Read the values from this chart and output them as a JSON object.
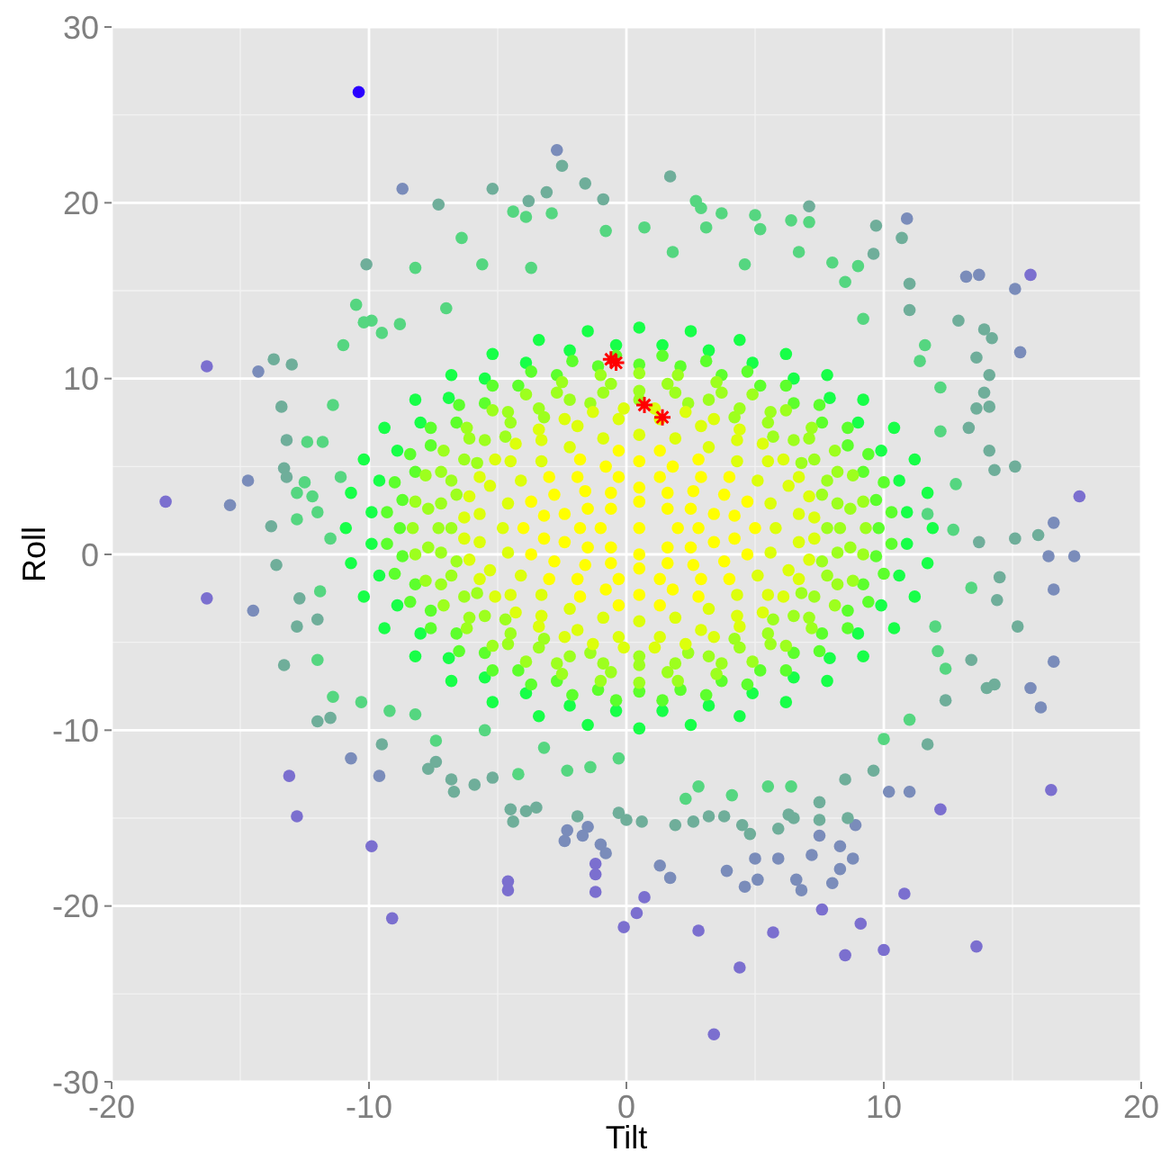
{
  "chart_data": {
    "type": "scatter",
    "xlabel": "Tilt",
    "ylabel": "Roll",
    "xlim": [
      -20,
      20
    ],
    "ylim": [
      -30,
      30
    ],
    "xticks": [
      -20,
      -10,
      0,
      10,
      20
    ],
    "yticks": [
      -30,
      -20,
      -10,
      0,
      10,
      20,
      30
    ],
    "grid": true,
    "marker": "circle",
    "series": [
      {
        "color": "#7b6fcf",
        "x": [
          -16.3,
          -17.9,
          -16.3,
          -13.1,
          -12.8,
          -9.9,
          -9.1,
          -4.6,
          -4.6,
          -1.2,
          -1.2,
          -1.2,
          -0.1,
          0.4,
          15.7,
          17.6,
          16.5,
          12.2,
          10.8,
          10.0,
          13.6,
          9.1,
          8.5,
          7.6,
          3.4,
          4.4,
          5.7,
          2.8,
          0.7
        ],
        "values": [
          10.7,
          3.0,
          -2.5,
          -12.6,
          -14.9,
          -16.6,
          -20.7,
          -18.6,
          -19.1,
          -17.6,
          -18.2,
          -19.2,
          -21.2,
          -20.4,
          15.9,
          3.3,
          -13.4,
          -14.5,
          -19.3,
          -22.5,
          -22.3,
          -21.0,
          -22.8,
          -20.2,
          -27.3,
          -23.5,
          -21.5,
          -21.4,
          -19.5
        ]
      },
      {
        "color": "#7a8cba",
        "x": [
          -2.7,
          -8.7,
          -14.3,
          -14.7,
          -15.4,
          10.9,
          13.2,
          13.7,
          15.1,
          15.3,
          16.6,
          16.4,
          17.4,
          -14.5,
          -10.7,
          -9.6,
          -2.3,
          -2.4,
          -1.5,
          -1.7,
          -1.0,
          -0.8,
          16.6,
          16.6,
          15.7,
          16.1,
          11.0,
          10.2,
          1.3,
          1.7,
          3.9,
          4.6,
          5.1,
          5.0,
          5.9,
          6.6,
          6.8,
          8.0,
          8.3,
          8.8,
          7.2,
          8.3,
          7.5,
          8.9
        ],
        "values": [
          23.0,
          20.8,
          10.4,
          4.2,
          2.8,
          19.1,
          15.8,
          15.9,
          15.1,
          11.5,
          1.8,
          -0.1,
          -0.1,
          -3.2,
          -11.6,
          -12.6,
          -15.7,
          -16.3,
          -15.5,
          -16.0,
          -16.5,
          -17.0,
          -2.0,
          -6.1,
          -7.6,
          -8.7,
          -13.5,
          -13.5,
          -17.7,
          -18.4,
          -18.0,
          -18.9,
          -18.5,
          -17.3,
          -17.3,
          -18.5,
          -19.1,
          -18.7,
          -17.9,
          -17.3,
          -17.1,
          -16.6,
          -16.0,
          -15.4
        ]
      },
      {
        "color": "#6fae9a",
        "x": [
          -2.5,
          -7.3,
          -5.2,
          -1.6,
          -0.9,
          -3.1,
          -3.8,
          -10.1,
          -13.7,
          -13.0,
          -13.4,
          -13.2,
          -13.3,
          -13.2,
          -13.8,
          1.7,
          7.1,
          9.7,
          10.7,
          9.6,
          11.0,
          12.9,
          13.9,
          14.2,
          13.6,
          14.1,
          13.9,
          14.1,
          13.6,
          13.3,
          15.1,
          14.1,
          14.3,
          16.0,
          15.1,
          13.7,
          11.0,
          -13.6,
          -12.7,
          -12.8,
          -12.0,
          -13.3,
          -12.0,
          -11.5,
          -9.5,
          -7.7,
          -7.4,
          -6.8,
          -6.7,
          -5.9,
          -5.2,
          -4.5,
          -4.4,
          -3.9,
          -3.5,
          -1.9,
          -0.3,
          0.0,
          14.3,
          14.0,
          13.4,
          15.2,
          14.4,
          14.5,
          12.4,
          11.7,
          9.6,
          7.5,
          8.6,
          5.9,
          4.8,
          4.5,
          1.9,
          2.6,
          3.2,
          3.8,
          0.6,
          6.3,
          6.5,
          8.5,
          7.5
        ],
        "values": [
          22.1,
          19.9,
          20.8,
          21.1,
          20.2,
          20.6,
          20.1,
          16.5,
          11.1,
          10.8,
          8.4,
          6.5,
          4.9,
          4.4,
          1.6,
          21.5,
          19.8,
          18.7,
          18.0,
          17.1,
          15.4,
          13.3,
          12.8,
          12.3,
          11.2,
          10.2,
          9.2,
          8.4,
          8.3,
          7.2,
          5.0,
          5.9,
          4.8,
          1.1,
          0.9,
          0.7,
          13.9,
          -0.6,
          -2.5,
          -4.1,
          -3.7,
          -6.3,
          -9.5,
          -9.3,
          -10.8,
          -12.2,
          -11.8,
          -12.8,
          -13.5,
          -13.1,
          -12.7,
          -14.5,
          -15.2,
          -14.6,
          -14.4,
          -14.9,
          -14.7,
          -15.1,
          -7.4,
          -7.6,
          -6.0,
          -4.1,
          -2.6,
          -1.3,
          -8.3,
          -10.8,
          -12.3,
          -15.1,
          -15.0,
          -15.6,
          -15.9,
          -15.4,
          -15.4,
          -15.2,
          -14.9,
          -14.9,
          -15.2,
          -14.8,
          -15.0,
          -12.8,
          -14.1
        ]
      },
      {
        "color": "#55d680",
        "x": [
          -4.4,
          -3.9,
          -2.9,
          -0.8,
          -6.4,
          -8.2,
          -10.5,
          -10.2,
          -9.9,
          -11.0,
          -12.4,
          -11.8,
          -11.4,
          -12.5,
          -12.8,
          -12.2,
          -12.8,
          -12.0,
          -11.5,
          -11.1,
          2.7,
          2.9,
          3.7,
          5.0,
          6.4,
          7.1,
          5.2,
          9.0,
          11.6,
          11.4,
          12.2,
          12.2,
          12.8,
          12.7,
          11.7,
          -11.9,
          -12.0,
          -11.4,
          -10.3,
          -9.2,
          -8.2,
          11.0,
          10.0,
          6.4,
          5.5,
          4.1,
          2.3,
          2.8,
          12.1,
          12.4,
          13.4,
          12.0,
          -7.4,
          -5.5,
          -3.2,
          -2.3,
          -1.4,
          -0.3,
          -4.2,
          0.7,
          3.1,
          4.6,
          6.7,
          8.0,
          8.5,
          9.2,
          1.8,
          -3.7,
          -5.6,
          -7.0,
          -8.8,
          -9.5
        ],
        "values": [
          19.5,
          19.2,
          19.4,
          18.4,
          18.0,
          16.3,
          14.2,
          13.2,
          13.3,
          11.9,
          6.4,
          6.4,
          8.5,
          4.1,
          3.5,
          3.3,
          2.0,
          2.4,
          0.9,
          4.4,
          20.1,
          19.7,
          19.4,
          19.3,
          19.0,
          18.9,
          18.5,
          16.4,
          11.9,
          11.0,
          9.5,
          7.0,
          4.0,
          1.4,
          2.3,
          -2.1,
          -6.0,
          -8.1,
          -8.4,
          -8.9,
          -9.1,
          -9.4,
          -10.5,
          -13.2,
          -13.2,
          -13.7,
          -13.9,
          -13.2,
          -5.5,
          -6.5,
          -1.9,
          -4.1,
          -10.6,
          -10.0,
          -11.0,
          -12.3,
          -12.1,
          -11.6,
          -12.5,
          18.6,
          18.6,
          16.5,
          17.2,
          16.6,
          15.5,
          13.4,
          17.2,
          16.3,
          16.5,
          14.0,
          13.1,
          12.6
        ]
      },
      {
        "color": "#17ff48",
        "x": [
          10.9,
          10.6,
          9.9,
          9.0,
          7.9,
          6.5,
          4.9,
          3.2,
          1.4,
          -0.4,
          -2.2,
          -3.9,
          -5.5,
          -6.9,
          -8.0,
          -8.9,
          -9.6,
          -9.9,
          -9.9,
          -9.6,
          -8.9,
          -8.0,
          -6.9,
          -5.5,
          -3.9,
          -2.2,
          -0.4,
          1.4,
          3.2,
          4.9,
          6.5,
          7.9,
          9.0,
          9.9,
          10.6,
          10.9,
          11.9,
          11.7,
          11.2,
          10.4,
          9.2,
          7.8,
          6.2,
          4.4,
          2.5,
          0.5,
          -1.5,
          -3.4,
          -5.2,
          -6.8,
          -8.2,
          -9.4,
          -10.2,
          -10.7,
          -10.9,
          -10.7,
          -10.2,
          -9.4,
          -8.2,
          -6.8,
          -5.2,
          -3.4,
          -1.5,
          0.5,
          2.5,
          4.4,
          6.2,
          7.8,
          9.2,
          10.4,
          11.2,
          11.7
        ],
        "values": [
          2.4,
          4.2,
          5.9,
          7.5,
          8.9,
          10.0,
          10.9,
          11.6,
          11.9,
          11.9,
          11.6,
          10.9,
          10.0,
          8.9,
          7.5,
          5.9,
          4.2,
          2.4,
          0.6,
          -1.2,
          -2.9,
          -4.5,
          -5.9,
          -7.0,
          -7.9,
          -8.6,
          -8.9,
          -8.9,
          -8.6,
          -7.9,
          -7.0,
          -5.9,
          -4.5,
          -2.9,
          -1.2,
          0.6,
          1.5,
          3.5,
          5.4,
          7.2,
          8.8,
          10.2,
          11.4,
          12.2,
          12.7,
          12.9,
          12.7,
          12.2,
          11.4,
          10.2,
          8.8,
          7.2,
          5.4,
          3.5,
          1.5,
          -0.5,
          -2.4,
          -4.2,
          -5.8,
          -7.2,
          -8.4,
          -9.2,
          -9.7,
          -9.9,
          -9.7,
          -9.2,
          -8.4,
          -7.2,
          -5.8,
          -4.2,
          -2.4,
          -0.5
        ]
      },
      {
        "color": "#5cff2c",
        "x": [
          9.8,
          9.7,
          9.2,
          8.6,
          7.6,
          6.5,
          5.2,
          3.7,
          2.1,
          0.5,
          -1.1,
          -2.7,
          -4.2,
          -5.5,
          -6.6,
          -7.6,
          -8.2,
          -8.7,
          -8.8,
          -8.7,
          -8.2,
          -7.6,
          -6.6,
          -5.5,
          -4.2,
          -2.7,
          -1.1,
          0.5,
          2.1,
          3.7,
          5.2,
          6.5,
          7.6,
          8.6,
          9.2,
          9.7,
          10.3,
          10.0,
          9.4,
          8.6,
          7.5,
          6.2,
          4.7,
          3.1,
          1.4,
          -0.4,
          -2.1,
          -3.7,
          -5.2,
          -6.5,
          -7.6,
          -8.4,
          -9.0,
          -9.3,
          -9.3,
          -9.0,
          -8.4,
          -7.6,
          -6.5,
          -5.2,
          -3.7,
          -2.1,
          -0.4,
          1.4,
          3.1,
          4.7,
          6.2,
          7.5,
          8.6,
          9.4,
          10.0,
          10.3
        ],
        "values": [
          1.5,
          3.1,
          4.7,
          6.2,
          7.5,
          8.6,
          9.6,
          10.2,
          10.7,
          10.8,
          10.7,
          10.2,
          9.6,
          8.6,
          7.5,
          6.2,
          4.7,
          3.1,
          1.5,
          -0.1,
          -1.7,
          -3.2,
          -4.5,
          -5.6,
          -6.6,
          -7.2,
          -7.7,
          -7.8,
          -7.7,
          -7.2,
          -6.6,
          -5.6,
          -4.5,
          -3.2,
          -1.7,
          -0.1,
          2.4,
          4.1,
          5.7,
          7.2,
          8.5,
          9.6,
          10.4,
          11.0,
          11.3,
          11.3,
          11.0,
          10.4,
          9.6,
          8.5,
          7.2,
          5.7,
          4.1,
          2.4,
          0.6,
          -1.1,
          -2.7,
          -4.2,
          -5.5,
          -6.6,
          -7.4,
          -8.0,
          -8.3,
          -8.3,
          -8.0,
          -7.4,
          -6.6,
          -5.5,
          -4.2,
          -2.7,
          -1.1,
          0.6
        ]
      },
      {
        "color": "#9dff1e",
        "x": [
          7.8,
          7.6,
          6.8,
          5.7,
          4.2,
          2.4,
          0.5,
          -1.4,
          -3.2,
          -4.7,
          -5.8,
          -6.6,
          -6.8,
          -6.6,
          -5.8,
          -4.7,
          -3.2,
          -1.4,
          0.5,
          2.4,
          4.2,
          5.7,
          6.8,
          7.6,
          8.7,
          8.2,
          7.1,
          5.6,
          3.7,
          1.6,
          -0.6,
          -2.7,
          -4.6,
          -6.1,
          -7.2,
          -7.7,
          -7.7,
          -7.2,
          -6.1,
          -4.6,
          -2.7,
          -0.6,
          1.6,
          3.7,
          5.6,
          7.1,
          8.2,
          8.7,
          9.3,
          9.2,
          8.8,
          8.1,
          7.2,
          6.2,
          4.9,
          3.5,
          2.0,
          0.5,
          -1.0,
          -2.5,
          -3.9,
          -5.2,
          -6.2,
          -7.1,
          -7.8,
          -8.2,
          -8.3,
          -8.2,
          -7.8,
          -7.1,
          -6.2,
          -5.2,
          -3.9,
          -2.5,
          -1.0,
          0.5,
          2.0,
          3.5,
          4.9,
          6.2,
          7.2,
          8.1,
          8.8,
          9.2,
          8.3,
          8.2,
          7.8,
          7.3,
          6.5,
          5.5,
          4.4,
          3.2,
          1.9,
          0.5,
          -0.9,
          -2.2,
          -3.4,
          -4.5,
          -5.5,
          -6.3,
          -6.8,
          -7.2,
          -7.3,
          -7.2,
          -6.8,
          -6.3,
          -5.5,
          -4.5,
          -3.4,
          -2.2,
          -0.9,
          0.5,
          1.9,
          3.2,
          4.4,
          5.5,
          6.5,
          7.3,
          7.8,
          8.2
        ],
        "values": [
          1.5,
          3.4,
          5.2,
          6.7,
          7.8,
          8.6,
          8.8,
          8.6,
          7.8,
          6.7,
          5.2,
          3.4,
          1.5,
          -0.4,
          -2.2,
          -3.7,
          -4.8,
          -5.6,
          -5.8,
          -5.6,
          -4.8,
          -3.7,
          -2.2,
          -0.4,
          2.6,
          4.7,
          6.6,
          8.1,
          9.2,
          9.7,
          9.7,
          9.2,
          8.1,
          6.6,
          4.7,
          2.6,
          0.4,
          -1.7,
          -3.6,
          -5.1,
          -6.2,
          -6.7,
          -6.7,
          -6.2,
          -5.1,
          -3.6,
          -1.7,
          0.4,
          1.5,
          3.0,
          4.5,
          5.9,
          7.2,
          8.2,
          9.1,
          9.8,
          10.2,
          10.3,
          10.2,
          9.8,
          9.1,
          8.2,
          7.2,
          5.9,
          4.5,
          3.0,
          1.5,
          0.0,
          -1.5,
          -2.9,
          -4.2,
          -5.2,
          -6.1,
          -6.8,
          -7.2,
          -7.3,
          -7.2,
          -6.8,
          -6.1,
          -5.2,
          -4.2,
          -2.9,
          -1.5,
          0.0,
          1.5,
          2.9,
          4.2,
          5.4,
          6.5,
          7.5,
          8.3,
          8.8,
          9.2,
          9.3,
          9.2,
          8.8,
          8.3,
          7.5,
          6.5,
          5.4,
          4.2,
          2.9,
          1.5,
          0.1,
          -1.2,
          -2.4,
          -3.5,
          -4.5,
          -5.3,
          -5.8,
          -6.2,
          -6.3,
          -6.2,
          -5.8,
          -5.3,
          -4.5,
          -3.5,
          -2.4,
          -1.2,
          0.1
        ]
      },
      {
        "color": "#dcff0c",
        "x": [
          5.8,
          5.6,
          5.1,
          4.3,
          3.2,
          1.9,
          0.5,
          -0.9,
          -2.2,
          -3.3,
          -4.1,
          -4.6,
          -4.8,
          -4.6,
          -4.1,
          -3.3,
          -2.2,
          -0.9,
          0.5,
          1.9,
          3.2,
          4.3,
          5.1,
          5.6,
          6.7,
          6.3,
          5.5,
          4.3,
          2.9,
          1.3,
          -0.3,
          -1.9,
          -3.3,
          -4.5,
          -5.3,
          -5.7,
          -5.7,
          -5.3,
          -4.5,
          -3.3,
          -1.9,
          -0.3,
          1.3,
          2.9,
          4.3,
          5.5,
          6.3,
          6.7,
          7.3,
          7.1,
          6.7,
          6.1,
          5.3,
          4.4,
          3.4,
          2.3,
          1.1,
          -0.1,
          -1.3,
          -2.4,
          -3.4,
          -4.3,
          -5.1,
          -5.7,
          -6.1,
          -6.3,
          -6.3,
          -6.1,
          -5.7,
          -5.1,
          -4.3,
          -3.4,
          -2.4,
          -1.3,
          -0.1,
          1.1,
          2.3,
          3.4,
          4.4,
          5.3,
          6.1,
          6.7,
          7.1,
          7.3
        ],
        "values": [
          1.5,
          2.9,
          4.2,
          5.3,
          6.1,
          6.6,
          6.8,
          6.6,
          6.1,
          5.3,
          4.2,
          2.9,
          1.5,
          0.1,
          -1.2,
          -2.3,
          -3.1,
          -3.6,
          -3.8,
          -3.6,
          -3.1,
          -2.3,
          -1.2,
          0.1,
          2.3,
          3.9,
          5.3,
          6.5,
          7.3,
          7.7,
          7.7,
          7.3,
          6.5,
          5.3,
          3.9,
          2.3,
          0.7,
          -0.9,
          -2.3,
          -3.5,
          -4.3,
          -4.7,
          -4.7,
          -4.3,
          -3.5,
          -2.3,
          -0.9,
          0.7,
          2.1,
          3.3,
          4.4,
          5.4,
          6.3,
          7.1,
          7.7,
          8.1,
          8.3,
          8.3,
          8.1,
          7.7,
          7.1,
          6.3,
          5.4,
          4.4,
          3.3,
          2.1,
          0.9,
          -0.3,
          -1.4,
          -2.4,
          -3.3,
          -4.1,
          -4.7,
          -5.1,
          -5.3,
          -5.3,
          -5.1,
          -4.7,
          -4.1,
          -3.3,
          -2.4,
          -1.4,
          -0.3,
          0.9
        ]
      },
      {
        "color": "#ffff00",
        "x": [
          0.5,
          2.0,
          1.6,
          0.5,
          -0.6,
          -1.0,
          -0.6,
          0.5,
          1.6,
          2.8,
          2.5,
          1.6,
          0.5,
          -0.6,
          -1.5,
          -1.8,
          -1.5,
          -0.6,
          0.5,
          1.6,
          2.5,
          3.4,
          2.6,
          1.3,
          -0.3,
          -1.6,
          -2.4,
          -2.4,
          -1.6,
          -0.3,
          1.3,
          2.6,
          3.4,
          4.2,
          3.8,
          2.9,
          1.8,
          0.5,
          -0.8,
          -1.9,
          -2.8,
          -3.2,
          -3.2,
          -2.8,
          -1.9,
          -0.8,
          0.5,
          1.8,
          2.9,
          3.8,
          4.2,
          5.0,
          4.7,
          4.0,
          2.8,
          1.3,
          -0.3,
          -1.8,
          -3.0,
          -3.7,
          -4.0,
          -3.7,
          -3.0,
          -1.8,
          -0.3,
          1.3,
          2.8,
          4.0,
          4.7
        ],
        "values": [
          1.5,
          1.5,
          2.6,
          3.0,
          2.6,
          1.5,
          0.4,
          0.0,
          0.4,
          1.5,
          2.6,
          3.5,
          3.8,
          3.5,
          2.6,
          1.5,
          0.4,
          -0.5,
          -0.8,
          -0.5,
          0.4,
          2.3,
          3.6,
          4.4,
          4.4,
          3.6,
          2.3,
          0.7,
          -0.6,
          -1.4,
          -1.4,
          -0.6,
          0.7,
          2.2,
          3.4,
          4.4,
          5.0,
          5.3,
          5.0,
          4.4,
          3.4,
          2.2,
          0.9,
          -0.4,
          -1.4,
          -2.0,
          -2.3,
          -2.0,
          -1.4,
          -0.4,
          0.9,
          1.5,
          3.0,
          4.4,
          5.4,
          5.9,
          5.9,
          5.4,
          4.4,
          3.0,
          1.5,
          0.0,
          -1.4,
          -2.4,
          -2.9,
          -2.9,
          -2.4,
          -1.4,
          0.0
        ]
      },
      {
        "color": "#2a00ff",
        "x": [
          -10.4
        ],
        "values": [
          26.3
        ]
      },
      {
        "color": "#ff0000",
        "marker": "cross",
        "x": [
          -0.6,
          -0.4,
          0.7,
          1.4
        ],
        "values": [
          11.1,
          10.9,
          8.5,
          7.8
        ]
      }
    ]
  }
}
